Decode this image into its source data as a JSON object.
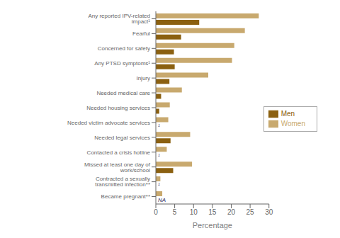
{
  "chart_data": {
    "type": "bar",
    "orientation": "horizontal",
    "categories": [
      "Any reported IPV-related impact¹",
      "Fearful",
      "Concerned for safety",
      "Any PTSD symptoms¹",
      "Injury",
      "Needed medical care",
      "Needed housing services",
      "Needed victim advocate services",
      "Needed legal services",
      "Contacted a crisis hotline",
      "Missed at least one day of work/school",
      "Contracted a sexually transmitted infection**",
      "Became pregnant**"
    ],
    "series": [
      {
        "name": "Women",
        "color": "#c8a96e",
        "values": [
          27.3,
          23.6,
          20.8,
          20.2,
          13.9,
          6.9,
          3.7,
          3.3,
          9.1,
          2.9,
          9.6,
          1.2,
          1.7
        ]
      },
      {
        "name": "Men",
        "color": "#8b6010",
        "values": [
          11.5,
          6.7,
          4.8,
          5.0,
          3.6,
          1.4,
          0.9,
          null,
          3.9,
          null,
          4.6,
          null,
          null
        ],
        "value_labels": [
          null,
          null,
          null,
          null,
          null,
          null,
          null,
          "¹",
          null,
          "¹",
          null,
          "¹",
          "NA"
        ]
      }
    ],
    "xlabel": "Percentage",
    "xlim": [
      0,
      30
    ],
    "xticks": [
      0,
      5,
      10,
      15,
      20,
      25,
      30
    ],
    "grid": false,
    "legend": "right"
  }
}
